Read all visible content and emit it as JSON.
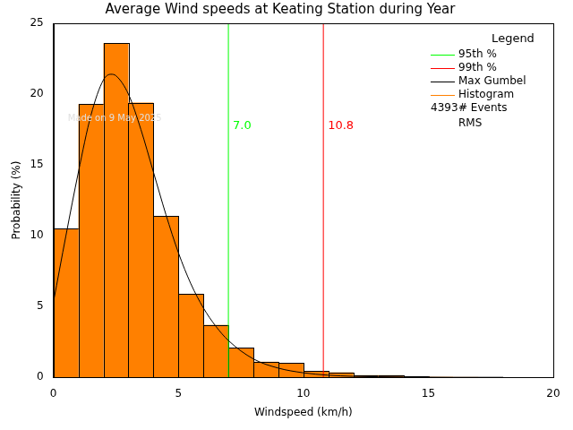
{
  "chart_data": {
    "type": "histogram",
    "title": "Average Wind speeds at Keating Station during Year",
    "x_label": "Windspeed (km/h)",
    "y_label": "Probability (%)",
    "xlim": [
      0,
      20
    ],
    "ylim": [
      0,
      25
    ],
    "xticks": [
      0,
      5,
      10,
      15,
      20
    ],
    "yticks": [
      0,
      5,
      10,
      15,
      20,
      25
    ],
    "grid": false,
    "legend": "top-right",
    "legend_title": "Legend",
    "series": [
      {
        "name": "95th %",
        "type": "vline",
        "color": "#00ff00",
        "value": 7,
        "label": "7.0"
      },
      {
        "name": "99th %",
        "type": "vline",
        "color": "#ff0000",
        "value": 10.8,
        "label": "10.8"
      },
      {
        "name": "Max Gumbel",
        "type": "line",
        "color": "#000000",
        "x": [
          0,
          0.5,
          1,
          1.5,
          2,
          2.3,
          2.5,
          3,
          3.5,
          4,
          4.5,
          5,
          5.5,
          6,
          6.5,
          7,
          8,
          9,
          10,
          11,
          12,
          14,
          16,
          18
        ],
        "values": [
          5.3,
          10,
          14.5,
          18.5,
          21,
          21.4,
          21.3,
          20,
          17.5,
          14.5,
          11.5,
          8.8,
          6.6,
          4.9,
          3.6,
          2.6,
          1.3,
          0.65,
          0.32,
          0.15,
          0.07,
          0.02,
          0,
          0
        ]
      },
      {
        "name": "Histogram",
        "type": "histogram",
        "color": "#ff8000",
        "bins": [
          0,
          1,
          2,
          3,
          4,
          5,
          6,
          7,
          8,
          9,
          10,
          11,
          12,
          13,
          14,
          15,
          16,
          17,
          18
        ],
        "values": [
          10.5,
          19.3,
          23.6,
          19.4,
          11.4,
          5.9,
          3.7,
          2.1,
          1.1,
          1.0,
          0.45,
          0.35,
          0.15,
          0.15,
          0.05,
          0.03,
          0.02,
          0.01
        ]
      }
    ],
    "events": 4393,
    "events_label": "# Events",
    "rms_label": "RMS",
    "note": "Made on 9 May 2025"
  }
}
